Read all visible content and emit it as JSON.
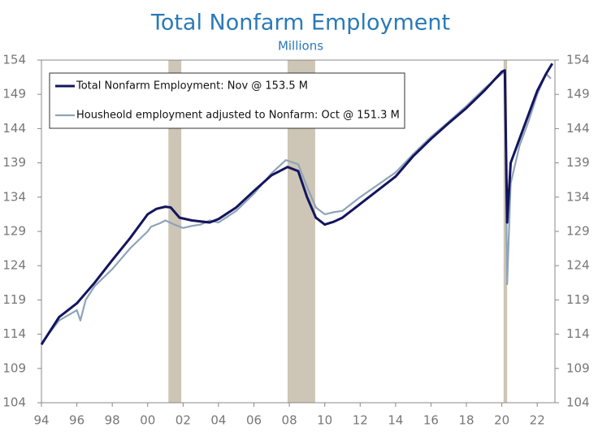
{
  "chart_data": {
    "type": "line",
    "title": "Total Nonfarm Employment",
    "subtitle": "Millions",
    "xlim": [
      1994,
      2023
    ],
    "ylim": [
      104,
      154
    ],
    "y2lim": [
      104,
      154
    ],
    "xticks": [
      {
        "value": 1994,
        "label": "94"
      },
      {
        "value": 1996,
        "label": "96"
      },
      {
        "value": 1998,
        "label": "98"
      },
      {
        "value": 2000,
        "label": "00"
      },
      {
        "value": 2002,
        "label": "02"
      },
      {
        "value": 2004,
        "label": "04"
      },
      {
        "value": 2006,
        "label": "06"
      },
      {
        "value": 2008,
        "label": "08"
      },
      {
        "value": 2010,
        "label": "10"
      },
      {
        "value": 2012,
        "label": "12"
      },
      {
        "value": 2014,
        "label": "14"
      },
      {
        "value": 2016,
        "label": "16"
      },
      {
        "value": 2018,
        "label": "18"
      },
      {
        "value": 2020,
        "label": "20"
      },
      {
        "value": 2022,
        "label": "22"
      }
    ],
    "yticks": [
      104,
      109,
      114,
      119,
      124,
      129,
      134,
      139,
      144,
      149,
      154
    ],
    "y2ticks": [
      104,
      109,
      114,
      119,
      124,
      129,
      134,
      139,
      144,
      149,
      154
    ],
    "recessions": [
      [
        2001.17,
        2001.9
      ],
      [
        2007.9,
        2009.46
      ],
      [
        2020.1,
        2020.3
      ]
    ],
    "recession_color": "#cdc5b5",
    "legend": "upper left",
    "series": [
      {
        "name": "Total Nonfarm Employment: Nov @ 153.5 M",
        "color": "#14145e",
        "x": [
          1994,
          1995,
          1996,
          1997,
          1998,
          1999,
          2000,
          2000.5,
          2001,
          2001.3,
          2001.8,
          2002.5,
          2003.5,
          2004,
          2005,
          2006,
          2007,
          2007.9,
          2008.5,
          2009,
          2009.5,
          2010,
          2010.5,
          2011,
          2012,
          2013,
          2014,
          2015,
          2016,
          2017,
          2018,
          2019,
          2020,
          2020.17,
          2020.3,
          2020.5,
          2021,
          2021.5,
          2022,
          2022.5,
          2022.85
        ],
        "values": [
          112.5,
          116.5,
          118.5,
          121.5,
          124.8,
          128,
          131.5,
          132.3,
          132.6,
          132.5,
          131,
          130.6,
          130.3,
          130.8,
          132.5,
          134.9,
          137.2,
          138.4,
          137.8,
          134,
          131,
          130,
          130.4,
          131,
          133,
          135,
          137,
          140,
          142.5,
          144.8,
          147,
          149.5,
          152.3,
          152.5,
          130.3,
          139,
          142.5,
          146,
          149.5,
          152,
          153.5
        ]
      },
      {
        "name": "Housheold employment adjusted to Nonfarm: Oct @ 151.3 M",
        "color": "#8ea4b8",
        "x": [
          1994,
          1995,
          1996,
          1996.2,
          1996.5,
          1997,
          1998,
          1999,
          2000,
          2000.2,
          2000.7,
          2001,
          2001.5,
          2002,
          2002.5,
          2003,
          2003.5,
          2004,
          2005,
          2006,
          2007,
          2007.8,
          2008.5,
          2009,
          2009.5,
          2010,
          2010.5,
          2011,
          2012,
          2013,
          2014,
          2015,
          2016,
          2017,
          2018,
          2019,
          2020,
          2020.17,
          2020.3,
          2020.5,
          2021,
          2021.5,
          2022,
          2022.5,
          2022.77
        ],
        "values": [
          112.7,
          116,
          117.5,
          116,
          119,
          121,
          123.5,
          126.5,
          129,
          129.7,
          130.2,
          130.6,
          130,
          129.5,
          129.8,
          130,
          130.6,
          130.3,
          132,
          134.5,
          137.5,
          139.4,
          138.8,
          135.5,
          132.5,
          131.5,
          131.8,
          132,
          134,
          135.8,
          137.6,
          140.3,
          142.8,
          145,
          147.3,
          149.8,
          152,
          152.3,
          121.3,
          136,
          141.5,
          145,
          149,
          152,
          151.3
        ]
      }
    ]
  }
}
